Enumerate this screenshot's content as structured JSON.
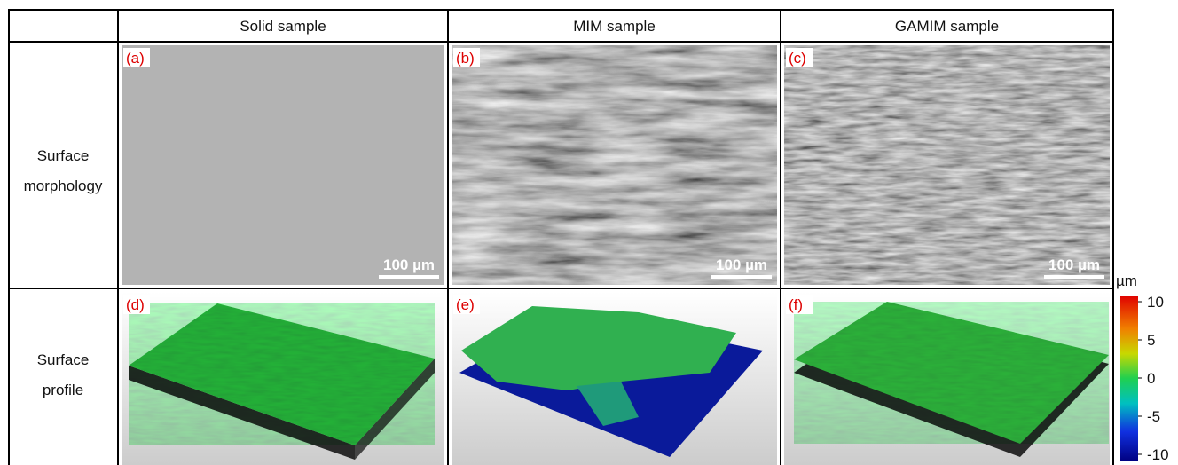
{
  "table": {
    "columns": [
      "Solid sample",
      "MIM sample",
      "GAMIM sample"
    ],
    "rows": [
      {
        "label": "Surface morphology",
        "panels": [
          "(a)",
          "(b)",
          "(c)"
        ],
        "scale_bars": [
          "100 µm",
          "100 µm",
          "100 µm"
        ]
      },
      {
        "label": "Surface profile",
        "panels": [
          "(d)",
          "(e)",
          "(f)"
        ]
      }
    ]
  },
  "colorbar": {
    "unit": "µm",
    "range": [
      -10,
      10
    ],
    "ticks": [
      10,
      5,
      0,
      -5,
      -10
    ]
  }
}
